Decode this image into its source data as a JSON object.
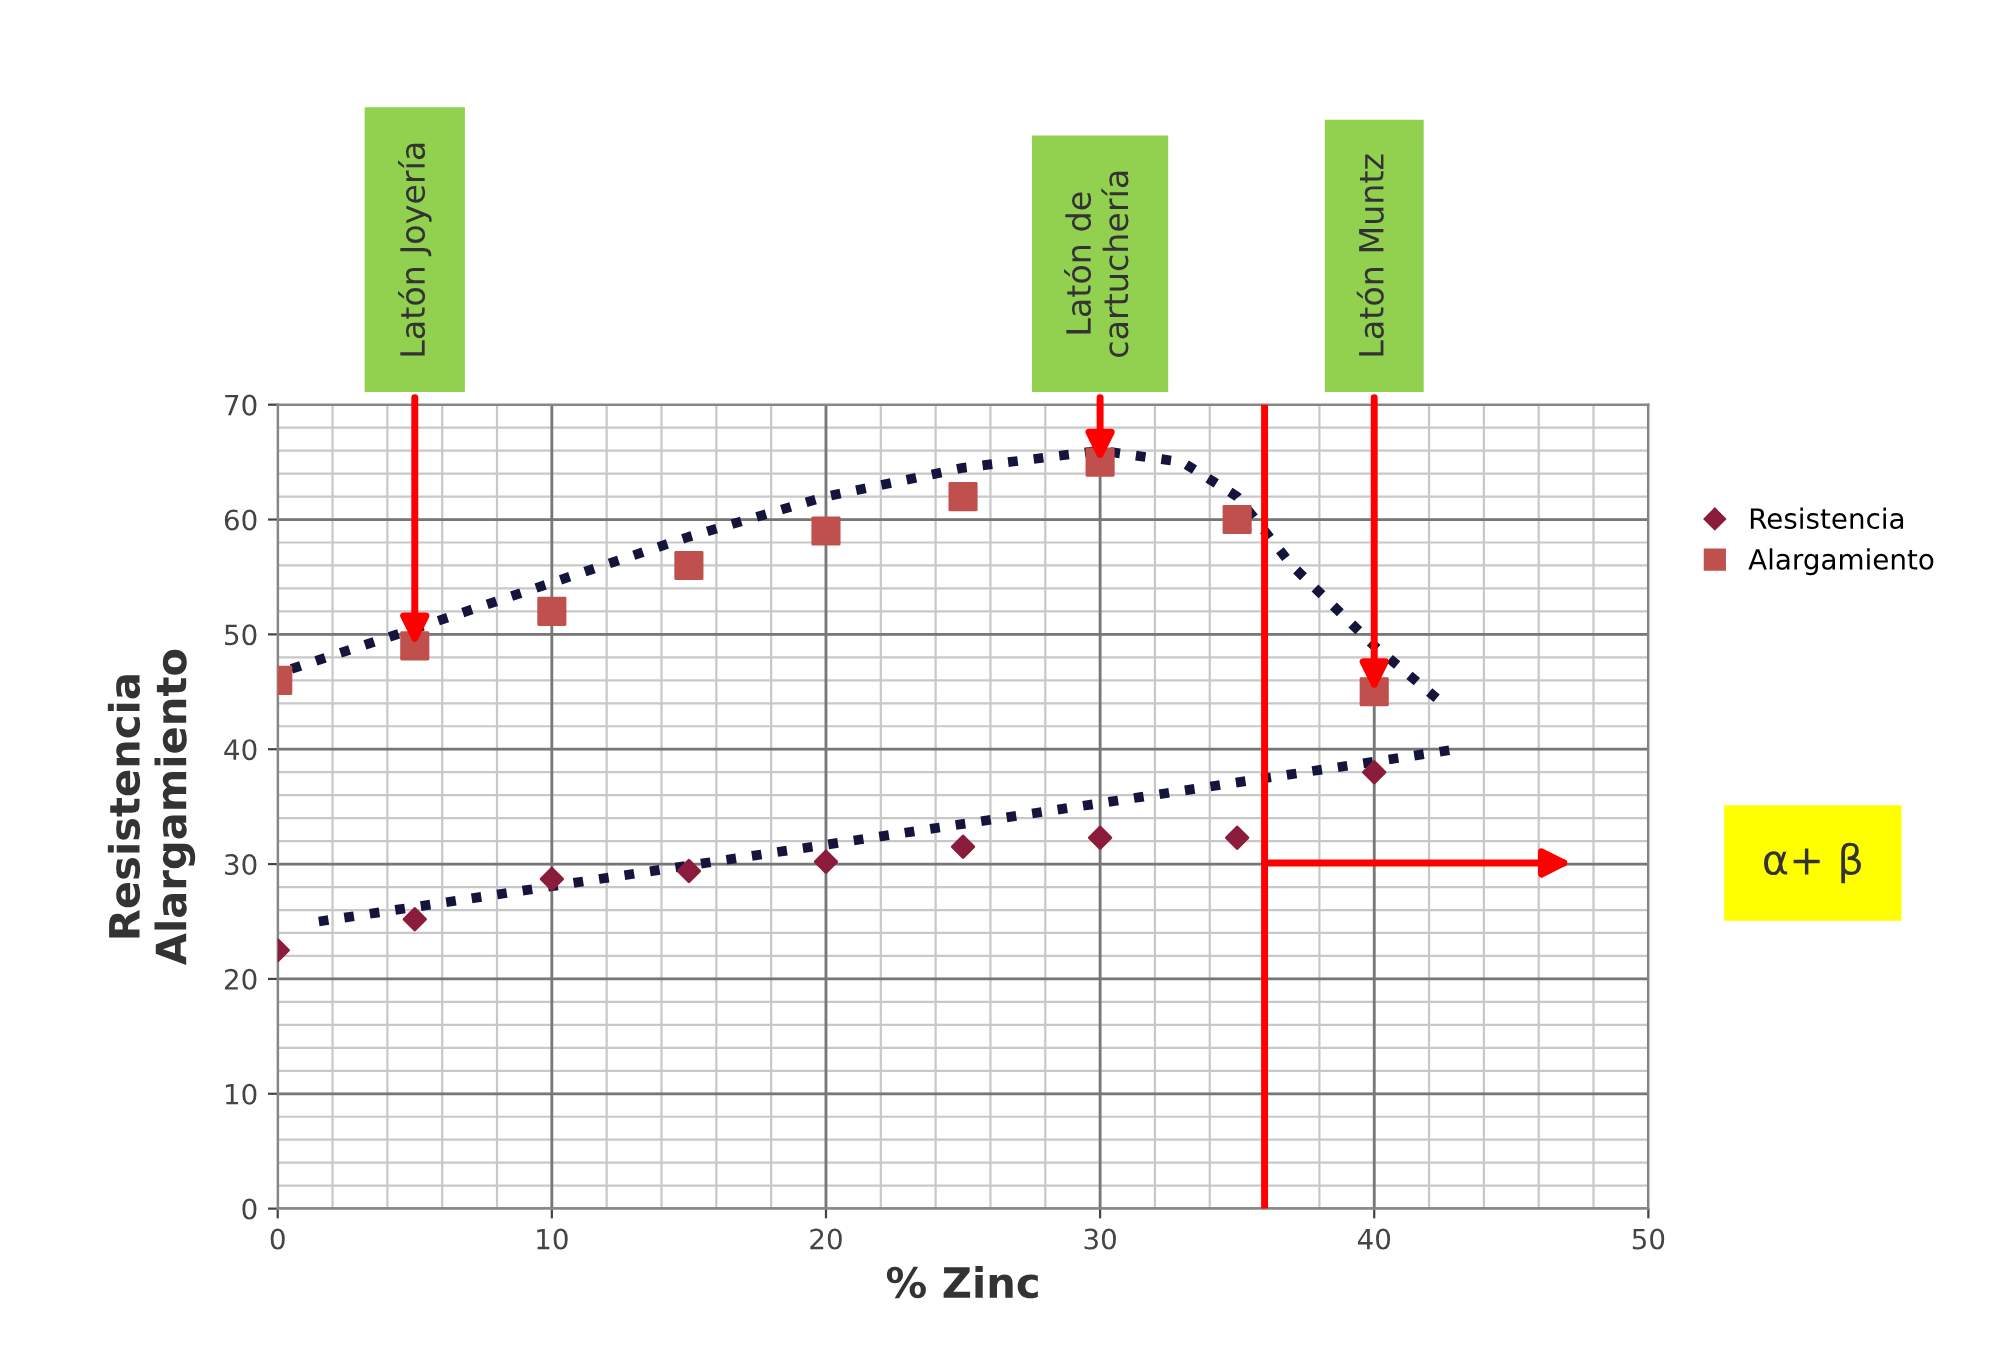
{
  "chart_data": {
    "type": "scatter",
    "xlabel": "% Zinc",
    "ylabel": "Resistencia\nAlargamiento",
    "x": [
      0,
      5,
      10,
      15,
      20,
      25,
      30,
      35,
      40
    ],
    "series": [
      {
        "name": "Resistencia",
        "color": "#8b1c3c",
        "marker": "diamond",
        "values": [
          22.5,
          25.2,
          28.7,
          29.4,
          30.2,
          31.5,
          32.3,
          32.3,
          38
        ]
      },
      {
        "name": "Alargamiento",
        "color": "#c0504d",
        "marker": "square",
        "values": [
          46,
          49,
          52,
          56,
          59,
          62,
          65,
          60,
          45
        ]
      },
      {
        "type": "line",
        "color": "#14143c",
        "line_style": "dotted",
        "x": [
          1.5,
          43
        ],
        "values": [
          25,
          40
        ]
      },
      {
        "type": "line",
        "color": "#14143c",
        "line_style": "dotted",
        "x": [
          0.5,
          5,
          10,
          15,
          20,
          25,
          30,
          33,
          35,
          37,
          40,
          42.5
        ],
        "values": [
          47,
          50.5,
          54.5,
          58.5,
          62,
          64.5,
          66,
          65,
          62,
          56,
          49,
          44
        ]
      }
    ],
    "xlim": [
      0,
      50
    ],
    "ylim": [
      0,
      70
    ],
    "xticks": [
      0,
      10,
      20,
      30,
      40,
      50
    ],
    "yticks": [
      0,
      10,
      20,
      30,
      40,
      50,
      60,
      70
    ],
    "grid": true,
    "legend": "right",
    "ref_lines": [
      {
        "axis": "x",
        "value": 36,
        "color": "#ff0000"
      }
    ],
    "annotations": [
      {
        "text": "Latón Joyería",
        "x": 5,
        "y": 49
      },
      {
        "text": "Latón de\ncartuchería",
        "x": 30,
        "y": 65
      },
      {
        "text": "Latón Muntz",
        "x": 40,
        "y": 45
      },
      "α+ β"
    ]
  }
}
